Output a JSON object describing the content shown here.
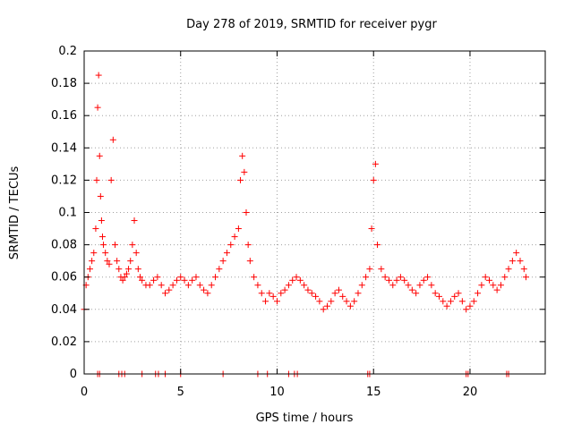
{
  "chart_data": {
    "type": "scatter",
    "title": "Day 278 of 2019, SRMTID for receiver pygr",
    "xlabel": "GPS time / hours",
    "ylabel": "SRMTID / TECUs",
    "xlim": [
      0,
      23.9
    ],
    "ylim": [
      0,
      0.2
    ],
    "x_ticks": [
      0,
      5,
      10,
      15,
      20
    ],
    "x_tick_labels": [
      "0",
      "5",
      "10",
      "15",
      "20"
    ],
    "y_ticks": [
      0,
      0.02,
      0.04,
      0.06,
      0.08,
      0.1,
      0.12,
      0.14,
      0.16,
      0.18,
      0.2
    ],
    "y_tick_labels": [
      "0",
      "0.02",
      "0.04",
      "0.06",
      "0.08",
      "0.1",
      "0.12",
      "0.14",
      "0.16",
      "0.18",
      "0.2"
    ],
    "grid": true,
    "marker": "+",
    "color": "#ff0000",
    "series": [
      {
        "name": "SRMTID",
        "x": [
          0.0,
          0.1,
          0.2,
          0.3,
          0.4,
          0.5,
          0.6,
          0.65,
          0.7,
          0.75,
          0.8,
          0.85,
          0.9,
          0.95,
          1.0,
          1.1,
          1.2,
          1.3,
          1.4,
          1.5,
          1.6,
          1.7,
          1.8,
          1.9,
          2.0,
          2.1,
          2.2,
          2.3,
          2.4,
          2.5,
          2.6,
          2.7,
          2.8,
          2.9,
          3.0,
          3.2,
          3.4,
          3.6,
          3.8,
          4.0,
          4.2,
          4.4,
          4.6,
          4.8,
          5.0,
          5.2,
          5.4,
          5.6,
          5.8,
          6.0,
          6.2,
          6.4,
          6.6,
          6.8,
          7.0,
          7.2,
          7.4,
          7.6,
          7.8,
          8.0,
          8.1,
          8.2,
          8.3,
          8.4,
          8.5,
          8.6,
          8.8,
          9.0,
          9.2,
          9.4,
          9.6,
          9.8,
          10.0,
          10.2,
          10.4,
          10.6,
          10.8,
          11.0,
          11.2,
          11.4,
          11.6,
          11.8,
          12.0,
          12.2,
          12.4,
          12.6,
          12.8,
          13.0,
          13.2,
          13.4,
          13.6,
          13.8,
          14.0,
          14.2,
          14.4,
          14.6,
          14.8,
          14.9,
          15.0,
          15.1,
          15.2,
          15.4,
          15.6,
          15.8,
          16.0,
          16.2,
          16.4,
          16.6,
          16.8,
          17.0,
          17.2,
          17.4,
          17.6,
          17.8,
          18.0,
          18.2,
          18.4,
          18.6,
          18.8,
          19.0,
          19.2,
          19.4,
          19.6,
          19.8,
          20.0,
          20.2,
          20.4,
          20.6,
          20.8,
          21.0,
          21.2,
          21.4,
          21.6,
          21.8,
          22.0,
          22.2,
          22.4,
          22.6,
          22.8,
          22.9
        ],
        "y": [
          0.04,
          0.055,
          0.06,
          0.065,
          0.07,
          0.075,
          0.09,
          0.12,
          0.165,
          0.185,
          0.135,
          0.11,
          0.095,
          0.085,
          0.08,
          0.075,
          0.07,
          0.068,
          0.12,
          0.145,
          0.08,
          0.07,
          0.065,
          0.06,
          0.058,
          0.06,
          0.062,
          0.065,
          0.07,
          0.08,
          0.095,
          0.075,
          0.065,
          0.06,
          0.058,
          0.055,
          0.055,
          0.058,
          0.06,
          0.055,
          0.05,
          0.052,
          0.055,
          0.058,
          0.06,
          0.058,
          0.055,
          0.058,
          0.06,
          0.055,
          0.052,
          0.05,
          0.055,
          0.06,
          0.065,
          0.07,
          0.075,
          0.08,
          0.085,
          0.09,
          0.12,
          0.135,
          0.125,
          0.1,
          0.08,
          0.07,
          0.06,
          0.055,
          0.05,
          0.045,
          0.05,
          0.048,
          0.045,
          0.05,
          0.052,
          0.055,
          0.058,
          0.06,
          0.058,
          0.055,
          0.052,
          0.05,
          0.048,
          0.045,
          0.04,
          0.042,
          0.045,
          0.05,
          0.052,
          0.048,
          0.045,
          0.042,
          0.045,
          0.05,
          0.055,
          0.06,
          0.065,
          0.09,
          0.12,
          0.13,
          0.08,
          0.065,
          0.06,
          0.058,
          0.055,
          0.058,
          0.06,
          0.058,
          0.055,
          0.052,
          0.05,
          0.055,
          0.058,
          0.06,
          0.055,
          0.05,
          0.048,
          0.045,
          0.042,
          0.045,
          0.048,
          0.05,
          0.045,
          0.04,
          0.042,
          0.045,
          0.05,
          0.055,
          0.06,
          0.058,
          0.055,
          0.052,
          0.055,
          0.06,
          0.065,
          0.07,
          0.075,
          0.07,
          0.065,
          0.06
        ]
      }
    ],
    "zero_points_x": [
      0.7,
      0.8,
      1.8,
      1.95,
      2.1,
      3.0,
      3.7,
      3.85,
      4.2,
      5.0,
      7.2,
      9.0,
      9.5,
      10.6,
      10.9,
      11.05,
      14.7,
      14.8,
      19.8,
      19.9,
      21.9,
      22.0
    ]
  }
}
